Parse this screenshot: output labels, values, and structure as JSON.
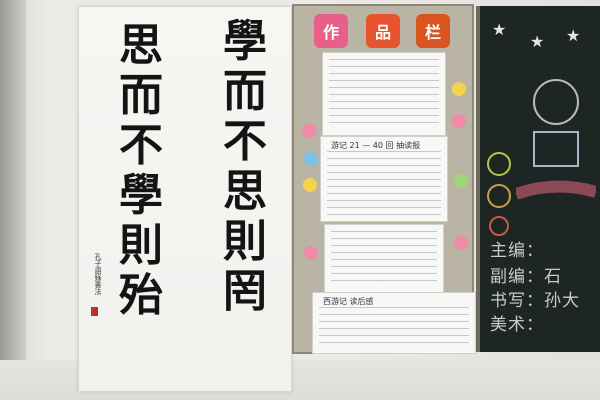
{
  "scroll": {
    "right_column": [
      "學",
      "而",
      "不",
      "思",
      "則",
      "罔"
    ],
    "left_column": [
      "思",
      "而",
      "不",
      "學",
      "則",
      "殆"
    ],
    "inscription": "孔子語錄書法",
    "seal_color": "#b8322a"
  },
  "board": {
    "tiles": [
      {
        "text": "作",
        "color": "#e8608a"
      },
      {
        "text": "品",
        "color": "#e7542f"
      },
      {
        "text": "栏",
        "color": "#d9541e"
      }
    ],
    "mid_sheet_title": "游记 21 — 40 回 抽读报",
    "bottom_sheet_title": "西游记 读后感",
    "frame_color": "#8e8778"
  },
  "chalkboard": {
    "lines": [
      "主编：",
      "副编：石",
      "书写：孙大",
      "美术："
    ],
    "background": "#1d2622"
  }
}
